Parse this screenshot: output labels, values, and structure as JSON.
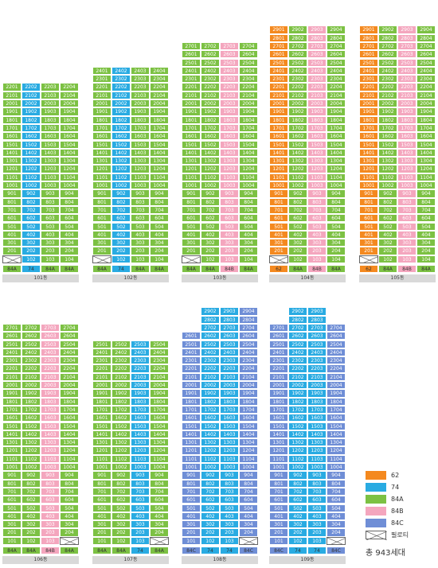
{
  "colors": {
    "62": "#f4891f",
    "74": "#29abe2",
    "84A": "#7cc143",
    "84B": "#f4a6be",
    "84C": "#6f8ed6"
  },
  "buildings": [
    {
      "name": "101동",
      "top_floor": 22,
      "cols": [
        "84A",
        "74",
        "84A",
        "84A"
      ],
      "types": [
        "84A",
        "74",
        "84A",
        "84A"
      ],
      "pilotis": [
        true,
        false,
        false,
        false
      ],
      "overrides": {
        "22": [
          "84A",
          "74",
          "84A",
          "84A"
        ]
      }
    },
    {
      "name": "102동",
      "top_floor": 24,
      "cols": [
        "84A",
        "74",
        "84A",
        "84A"
      ],
      "types": [
        "84A",
        "74",
        "84A",
        "84A"
      ],
      "pilotis": [
        true,
        false,
        false,
        false
      ],
      "overrides": {}
    },
    {
      "name": "103동",
      "top_floor": 27,
      "cols": [
        "84A",
        "84A",
        "84B",
        "84A"
      ],
      "types": [
        "84A",
        "84A",
        "84B",
        "84A"
      ],
      "pilotis": [
        true,
        false,
        false,
        false
      ],
      "overrides": {}
    },
    {
      "name": "104동",
      "top_floor": 29,
      "cols": [
        "62",
        "84A",
        "84B",
        "84A"
      ],
      "types": [
        "62",
        "84A",
        "84B",
        "84A"
      ],
      "pilotis": [
        true,
        false,
        false,
        false
      ],
      "overrides": {}
    },
    {
      "name": "105동",
      "top_floor": 29,
      "cols": [
        "62",
        "84A",
        "84B",
        "84A"
      ],
      "types": [
        "62",
        "84A",
        "84B",
        "84A"
      ],
      "pilotis": [
        true,
        false,
        false,
        false
      ],
      "overrides": {}
    },
    {
      "name": "106동",
      "top_floor": 27,
      "cols": [
        "84A",
        "84A",
        "84B",
        "84A"
      ],
      "types": [
        "84A",
        "84A",
        "84B",
        "84A"
      ],
      "pilotis": [
        false,
        false,
        false,
        true
      ],
      "overrides": {}
    },
    {
      "name": "107동",
      "top_floor": 25,
      "cols": [
        "84A",
        "84A",
        "74",
        "84A"
      ],
      "types": [
        "84A",
        "84A",
        "74",
        "84A"
      ],
      "pilotis": [
        false,
        false,
        false,
        true
      ],
      "overrides": {}
    },
    {
      "name": "108동",
      "top_floor": 29,
      "cols": [
        "84C",
        "74",
        "74",
        "84C"
      ],
      "types": [
        "84C",
        "74",
        "74",
        "84C"
      ],
      "pilotis": [
        false,
        false,
        false,
        true
      ],
      "overrides": {},
      "col_top": [
        26,
        29,
        29,
        29
      ]
    },
    {
      "name": "109동",
      "top_floor": 29,
      "cols": [
        "84C",
        "74",
        "74",
        "84C"
      ],
      "types": [
        "84C",
        "74",
        "74",
        "84C"
      ],
      "pilotis": [
        false,
        false,
        false,
        true
      ],
      "overrides": {},
      "col_top": [
        27,
        29,
        29,
        27
      ]
    }
  ],
  "legend": {
    "items": [
      {
        "key": "62",
        "label": "62"
      },
      {
        "key": "74",
        "label": "74"
      },
      {
        "key": "84A",
        "label": "84A"
      },
      {
        "key": "84B",
        "label": "84B"
      },
      {
        "key": "84C",
        "label": "84C"
      }
    ],
    "pilotis_label": "필로티",
    "total": "총 943세대"
  }
}
